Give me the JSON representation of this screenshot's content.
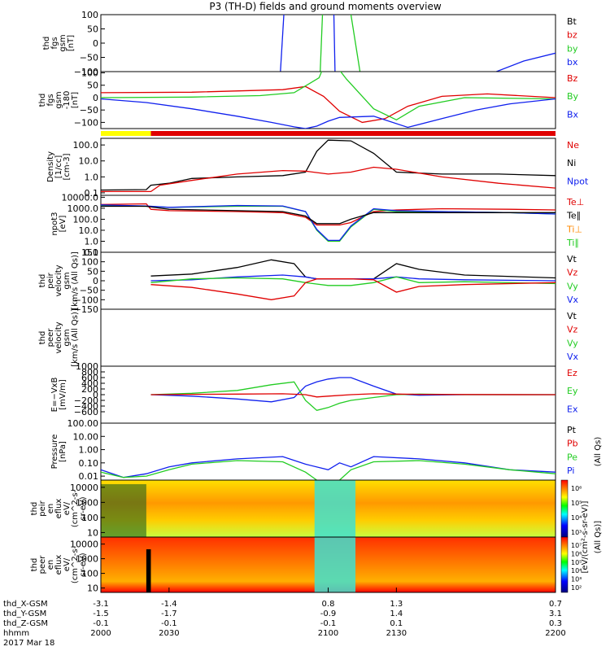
{
  "title": "P3 (TH-D) fields and ground moments overview",
  "colors": {
    "black": "#000000",
    "red": "#e00000",
    "green": "#22cc22",
    "blue": "#1020ee",
    "yellow": "#ffff00"
  },
  "chart_data": [
    {
      "type": "line",
      "ylabel": [
        "thd",
        "fgs",
        "gsm",
        "[nT]"
      ],
      "ylim": [
        -100,
        100
      ],
      "yticks": [
        "100",
        "50",
        "0",
        "−50",
        "−100"
      ],
      "legend": [
        [
          "Bt",
          "black"
        ],
        [
          "bz",
          "red"
        ],
        [
          "by",
          "green"
        ],
        [
          "bx",
          "blue"
        ]
      ],
      "series": [
        {
          "name": "by",
          "color": "green",
          "segments": [
            [
              [
                2096.5,
                -100
              ],
              [
                2097.5,
                100
              ]
            ],
            [
              [
                2110,
                100
              ],
              [
                2114,
                -100
              ]
            ]
          ]
        },
        {
          "name": "bx",
          "color": "blue",
          "segments": [
            [
              [
                2079,
                -100
              ],
              [
                2080.5,
                100
              ]
            ],
            [
              [
                2102.5,
                100
              ],
              [
                2103,
                -100
              ]
            ],
            [
              [
                2174,
                -100
              ],
              [
                2186,
                -63
              ],
              [
                2200,
                -35
              ]
            ]
          ]
        }
      ]
    },
    {
      "type": "line",
      "ylabel": [
        "thd",
        "fgs",
        "gsm",
        "-180",
        "[nT]"
      ],
      "ylim": [
        -125,
        105
      ],
      "yticks": [
        "100",
        "50",
        "0",
        "−50",
        "−100"
      ],
      "ytick_values": [
        100,
        50,
        0,
        -50,
        -100
      ],
      "legend": [
        [
          "Bz",
          "red"
        ],
        [
          "By",
          "green"
        ],
        [
          "Bx",
          "blue"
        ]
      ],
      "series": [
        {
          "name": "Bz",
          "color": "red",
          "x": [
            2000,
            2040,
            2080,
            2090,
            2098,
            2105,
            2115,
            2125,
            2135,
            2150,
            2170,
            2200
          ],
          "y": [
            20,
            22,
            32,
            45,
            5,
            -55,
            -100,
            -85,
            -35,
            5,
            15,
            0
          ]
        },
        {
          "name": "By",
          "color": "green",
          "x": [
            2000,
            2040,
            2070,
            2085,
            2096,
            2100,
            2108,
            2120,
            2130,
            2140,
            2160,
            2200
          ],
          "y": [
            0,
            2,
            8,
            20,
            80,
            170,
            75,
            -45,
            -90,
            -35,
            0,
            -5
          ]
        },
        {
          "name": "Bx",
          "color": "blue",
          "x": [
            2000,
            2020,
            2040,
            2060,
            2075,
            2085,
            2090,
            2095,
            2100,
            2105,
            2120,
            2135,
            2150,
            2165,
            2180,
            2200
          ],
          "y": [
            -5,
            -20,
            -45,
            -75,
            -100,
            -118,
            -125,
            -115,
            -95,
            -80,
            -75,
            -120,
            -85,
            -50,
            -25,
            -5
          ]
        }
      ],
      "status_bar": [
        {
          "from": 2000,
          "to": 2022,
          "color": "yellow"
        },
        {
          "from": 2022,
          "to": 2200,
          "color": "red"
        }
      ]
    },
    {
      "type": "line",
      "ylabel": [
        "Density",
        "[1/cc]",
        "[cm-3]"
      ],
      "yscale": "log",
      "ylim": [
        0.07,
        260
      ],
      "yticks": [
        "100.0",
        "10.0",
        "1.0",
        "0.1"
      ],
      "ytick_values": [
        100,
        10,
        1,
        0.1
      ],
      "legend": [
        [
          "Ne",
          "red"
        ],
        [
          "Ni",
          "black"
        ],
        [
          "Npot",
          "blue"
        ]
      ],
      "series": [
        {
          "name": "Ni",
          "color": "black",
          "x": [
            2000,
            2020,
            2022,
            2030,
            2040,
            2060,
            2080,
            2090,
            2095,
            2100,
            2110,
            2120,
            2130,
            2150,
            2175,
            2200
          ],
          "y": [
            0.15,
            0.16,
            0.3,
            0.4,
            0.8,
            1,
            1.2,
            2,
            40,
            200,
            180,
            30,
            2,
            1.5,
            1.5,
            1.2
          ]
        },
        {
          "name": "Ne",
          "color": "red",
          "x": [
            2000,
            2022,
            2026,
            2040,
            2060,
            2080,
            2090,
            2100,
            2110,
            2120,
            2130,
            2150,
            2175,
            2200
          ],
          "y": [
            0.12,
            0.12,
            0.3,
            0.6,
            1.5,
            2.5,
            2.3,
            1.5,
            2,
            4,
            3,
            1,
            0.4,
            0.2
          ]
        }
      ]
    },
    {
      "type": "line",
      "ylabel": [
        "npot3",
        "[eV]"
      ],
      "yscale": "log",
      "ylim": [
        0.1,
        15000
      ],
      "yticks": [
        "10000.0",
        "1000.0",
        "100.0",
        "10.0",
        "1.0",
        "0.1"
      ],
      "ytick_values": [
        10000,
        1000,
        100,
        10,
        1,
        0.1
      ],
      "legend": [
        [
          "Te⊥",
          "red"
        ],
        [
          "Te∥",
          "black"
        ],
        [
          "Ti⊥",
          "orange"
        ],
        [
          "Ti∥",
          "green"
        ]
      ],
      "series": [
        {
          "name": "Te⊥",
          "color": "red",
          "x": [
            2000,
            2020,
            2022,
            2030,
            2060,
            2080,
            2090,
            2095,
            2105,
            2110,
            2120,
            2130,
            2150,
            2180,
            2200
          ],
          "y": [
            2200,
            2500,
            800,
            600,
            500,
            400,
            150,
            30,
            30,
            50,
            500,
            700,
            900,
            800,
            700
          ]
        },
        {
          "name": "Ti∥",
          "color": "green",
          "x": [
            2000,
            2020,
            2030,
            2060,
            2080,
            2090,
            2095,
            2100,
            2105,
            2110,
            2120,
            2130,
            2150,
            2180,
            2200
          ],
          "y": [
            1800,
            1500,
            1200,
            1500,
            1500,
            500,
            10,
            1,
            1,
            20,
            800,
            500,
            500,
            400,
            300
          ]
        },
        {
          "name": "Ti⊥",
          "color": "blue",
          "x": [
            2000,
            2020,
            2030,
            2060,
            2080,
            2090,
            2095,
            2100,
            2105,
            2110,
            2120,
            2130,
            2150,
            2180,
            2200
          ],
          "y": [
            2000,
            1600,
            1200,
            1800,
            1600,
            500,
            12,
            1.2,
            1.2,
            25,
            900,
            600,
            500,
            400,
            300
          ]
        },
        {
          "name": "Te∥",
          "color": "black",
          "x": [
            2000,
            2020,
            2030,
            2060,
            2080,
            2090,
            2095,
            2105,
            2110,
            2120,
            2200
          ],
          "y": [
            1500,
            1500,
            800,
            600,
            500,
            200,
            40,
            40,
            100,
            400,
            400
          ]
        }
      ]
    },
    {
      "type": "line",
      "ylabel": [
        "thd",
        "peir",
        "velocity",
        "gsm",
        "[km/s (All Qs)]"
      ],
      "ylim": [
        -150,
        150
      ],
      "yticks": [
        "150",
        "100",
        "50",
        "0",
        "−50",
        "−100",
        "−150"
      ],
      "ytick_values": [
        150,
        100,
        50,
        0,
        -50,
        -100,
        -150
      ],
      "legend": [
        [
          "Vt",
          "black"
        ],
        [
          "Vz",
          "red"
        ],
        [
          "Vy",
          "green"
        ],
        [
          "Vx",
          "blue"
        ]
      ],
      "series": [
        {
          "name": "Vt",
          "color": "black",
          "x": [
            2022,
            2040,
            2060,
            2075,
            2085,
            2090,
            2095,
            2110,
            2120,
            2130,
            2140,
            2160,
            2200
          ],
          "y": [
            25,
            35,
            70,
            110,
            90,
            20,
            10,
            10,
            10,
            90,
            60,
            30,
            15
          ]
        },
        {
          "name": "Vx",
          "color": "blue",
          "x": [
            2022,
            2040,
            2060,
            2080,
            2090,
            2095,
            2110,
            2120,
            2130,
            2140,
            2160,
            2200
          ],
          "y": [
            0,
            5,
            20,
            30,
            20,
            10,
            10,
            10,
            20,
            10,
            5,
            0
          ]
        },
        {
          "name": "Vy",
          "color": "green",
          "x": [
            2022,
            2040,
            2060,
            2080,
            2090,
            2100,
            2110,
            2120,
            2130,
            2140,
            2160,
            2200
          ],
          "y": [
            -10,
            10,
            15,
            10,
            -10,
            -25,
            -25,
            -10,
            20,
            -10,
            -5,
            -15
          ]
        },
        {
          "name": "Vz",
          "color": "red",
          "x": [
            2022,
            2040,
            2060,
            2075,
            2085,
            2090,
            2095,
            2110,
            2120,
            2130,
            2140,
            2160,
            2200
          ],
          "y": [
            -20,
            -35,
            -70,
            -100,
            -80,
            -10,
            10,
            10,
            5,
            -60,
            -30,
            -20,
            -10
          ]
        }
      ]
    },
    {
      "type": "line",
      "ylabel": [
        "thd",
        "peer",
        "velocity",
        "gsm",
        "[km/s (All Qs)]"
      ],
      "ylim": [
        -150,
        150
      ],
      "yticks": [],
      "legend": [
        [
          "Vt",
          "black"
        ],
        [
          "Vz",
          "red"
        ],
        [
          "Vy",
          "green"
        ],
        [
          "Vx",
          "blue"
        ]
      ],
      "series": []
    },
    {
      "type": "line",
      "ylabel": [
        "E=−VxB",
        "[mV/m]"
      ],
      "ylim": [
        -1000,
        1000
      ],
      "yticks": [
        "1000",
        "800",
        "600",
        "400",
        "200",
        "0",
        "−200",
        "−400",
        "−600"
      ],
      "ytick_values": [
        1000,
        800,
        600,
        400,
        200,
        0,
        -200,
        -400,
        -600
      ],
      "legend": [
        [
          "Ez",
          "red"
        ],
        [
          "Ey",
          "green"
        ],
        [
          "Ex",
          "blue"
        ]
      ],
      "series": [
        {
          "name": "Ex",
          "color": "blue",
          "x": [
            2022,
            2040,
            2060,
            2075,
            2085,
            2090,
            2095,
            2100,
            2105,
            2110,
            2120,
            2130,
            2140,
            2160,
            2200
          ],
          "y": [
            0,
            -50,
            -150,
            -250,
            -100,
            300,
            450,
            550,
            600,
            600,
            300,
            20,
            -20,
            0,
            0
          ]
        },
        {
          "name": "Ey",
          "color": "green",
          "x": [
            2022,
            2040,
            2060,
            2075,
            2085,
            2090,
            2095,
            2100,
            2105,
            2110,
            2120,
            2130,
            2140,
            2160,
            2200
          ],
          "y": [
            0,
            50,
            150,
            350,
            450,
            -200,
            -550,
            -450,
            -300,
            -200,
            -100,
            0,
            20,
            0,
            0
          ]
        },
        {
          "name": "Ez",
          "color": "red",
          "x": [
            2022,
            2040,
            2060,
            2080,
            2090,
            2095,
            2100,
            2110,
            2120,
            2130,
            2140,
            2160,
            2200
          ],
          "y": [
            0,
            10,
            20,
            30,
            0,
            -80,
            -50,
            0,
            30,
            20,
            10,
            5,
            0
          ]
        }
      ]
    },
    {
      "type": "line",
      "ylabel": [
        "Pressure",
        "[nPa]"
      ],
      "yscale": "log",
      "ylim": [
        0.005,
        100
      ],
      "yticks": [
        "100.00",
        "10.00",
        "1.00",
        "0.10",
        "0.01"
      ],
      "ytick_values": [
        100,
        10,
        1,
        0.1,
        0.01
      ],
      "legend": [
        [
          "Pt",
          "black"
        ],
        [
          "Pb",
          "red"
        ],
        [
          "Pe",
          "green"
        ],
        [
          "Pi",
          "blue"
        ]
      ],
      "right_label": "(All Qs)",
      "series": [
        {
          "name": "Pi",
          "color": "blue",
          "x": [
            2000,
            2010,
            2020,
            2030,
            2040,
            2060,
            2080,
            2090,
            2100,
            2105,
            2110,
            2120,
            2140,
            2160,
            2180,
            2200
          ],
          "y": [
            0.03,
            0.008,
            0.015,
            0.05,
            0.1,
            0.2,
            0.3,
            0.08,
            0.03,
            0.1,
            0.05,
            0.3,
            0.2,
            0.1,
            0.03,
            0.02
          ]
        },
        {
          "name": "Pe",
          "color": "green",
          "x": [
            2000,
            2010,
            2020,
            2030,
            2040,
            2060,
            2080,
            2090,
            2095,
            2100,
            2105,
            2110,
            2120,
            2140,
            2160,
            2180,
            2200
          ],
          "y": [
            0.02,
            0.008,
            0.01,
            0.03,
            0.08,
            0.15,
            0.12,
            0.02,
            0.005,
            0.003,
            0.005,
            0.03,
            0.12,
            0.15,
            0.08,
            0.03,
            0.015
          ]
        }
      ]
    },
    {
      "type": "heatmap",
      "ylabel": [
        "thd",
        "peir",
        "en",
        "eflux",
        "eV/",
        "(cm^2-s-",
        "sr-eV)"
      ],
      "yscale": "log",
      "ylim": [
        5,
        30000
      ],
      "yticks": [
        "10000",
        "1000",
        "100",
        "10"
      ],
      "colorbar": {
        "ticks": [
          "10⁶",
          "10⁵",
          "10⁴",
          "10³"
        ],
        "label": "[eV/(cm²-s-sr-eV)]"
      }
    },
    {
      "type": "heatmap",
      "ylabel": [
        "thd",
        "peer",
        "en",
        "eflux",
        "eV/",
        "(cm^2-s-",
        "sr-eV)"
      ],
      "yscale": "log",
      "ylim": [
        5,
        30000
      ],
      "yticks": [
        "10000",
        "1000",
        "100",
        "10"
      ],
      "colorbar": {
        "ticks": [
          "10⁷",
          "10⁶",
          "10⁵",
          "10⁴",
          "10³",
          "10²"
        ],
        "label": "[eV/(cm²-s-sr-eV)]"
      }
    }
  ],
  "xaxis": {
    "range": [
      2000,
      2200
    ],
    "rows": [
      {
        "label": "thd_X-GSM",
        "values": [
          "-3.1",
          "-1.4",
          "0.8",
          "1.3",
          "0.7"
        ]
      },
      {
        "label": "thd_Y-GSM",
        "values": [
          "-1.5",
          "-1.7",
          "-0.9",
          "1.4",
          "3.1"
        ]
      },
      {
        "label": "thd_Z-GSM",
        "values": [
          "-0.1",
          "-0.1",
          "-0.1",
          "0.1",
          "0.3"
        ]
      },
      {
        "label": "hhmm",
        "values": [
          "2000",
          "2030",
          "2100",
          "2130",
          "2200"
        ]
      }
    ],
    "tick_values": [
      2000,
      2030,
      2100,
      2130,
      2200
    ],
    "date": "2017 Mar 18"
  },
  "colorbar_axis_label": "[eV/(cm²-s-sr-eV)]",
  "colorbar_right_label": "(All Qs)]"
}
